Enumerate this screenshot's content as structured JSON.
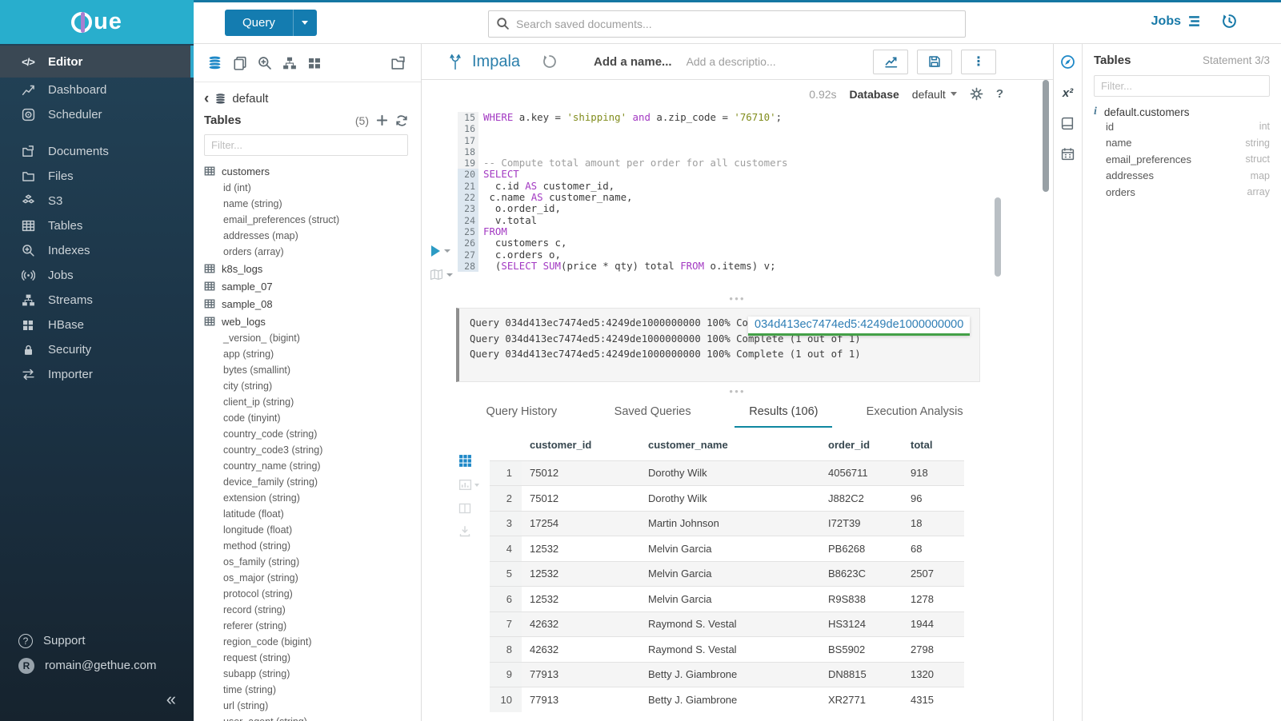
{
  "colors": {
    "brand_cyan": "#28aecd",
    "primary_blue": "#147cb0",
    "link_blue": "#2b7fab",
    "tab_active_underline": "#0e87a0",
    "keyword": "#a238c2",
    "string": "#808c1c",
    "comment": "#9e9e9e",
    "tooltip_green": "#43a047",
    "tooltip_blue": "#2e7eb5"
  },
  "topbar": {
    "query_label": "Query",
    "search_placeholder": "Search saved documents...",
    "jobs_label": "Jobs"
  },
  "sidebar": {
    "logo_text": "ue",
    "items": [
      {
        "id": "editor",
        "icon": "code",
        "label": "Editor",
        "active": true
      },
      {
        "id": "dashboard",
        "icon": "dashboard",
        "label": "Dashboard"
      },
      {
        "id": "scheduler",
        "icon": "scheduler",
        "label": "Scheduler"
      },
      {
        "id": "documents",
        "icon": "documents",
        "label": "Documents",
        "gap": true
      },
      {
        "id": "files",
        "icon": "files",
        "label": "Files"
      },
      {
        "id": "s3",
        "icon": "s3",
        "label": "S3"
      },
      {
        "id": "tables",
        "icon": "tables",
        "label": "Tables"
      },
      {
        "id": "indexes",
        "icon": "indexes",
        "label": "Indexes"
      },
      {
        "id": "jobs",
        "icon": "jobs",
        "label": "Jobs"
      },
      {
        "id": "streams",
        "icon": "streams",
        "label": "Streams"
      },
      {
        "id": "hbase",
        "icon": "hbase",
        "label": "HBase"
      },
      {
        "id": "security",
        "icon": "security",
        "label": "Security"
      },
      {
        "id": "importer",
        "icon": "importer",
        "label": "Importer"
      }
    ],
    "support_label": "Support",
    "user_email": "romain@gethue.com",
    "avatar_letter": "R",
    "collapse_glyph": "«"
  },
  "left_panel": {
    "breadcrumb_back": "‹",
    "database": "default",
    "tables_label": "Tables",
    "count": "(5)",
    "filter_placeholder": "Filter...",
    "tables": [
      {
        "name": "customers",
        "cols": [
          "id (int)",
          "name (string)",
          "email_preferences (struct)",
          "addresses (map)",
          "orders (array)"
        ]
      },
      {
        "name": "k8s_logs",
        "cols": []
      },
      {
        "name": "sample_07",
        "cols": []
      },
      {
        "name": "sample_08",
        "cols": []
      },
      {
        "name": "web_logs",
        "cols": [
          "_version_ (bigint)",
          "app (string)",
          "bytes (smallint)",
          "city (string)",
          "client_ip (string)",
          "code (tinyint)",
          "country_code (string)",
          "country_code3 (string)",
          "country_name (string)",
          "device_family (string)",
          "extension (string)",
          "latitude (float)",
          "longitude (float)",
          "method (string)",
          "os_family (string)",
          "os_major (string)",
          "protocol (string)",
          "record (string)",
          "referer (string)",
          "region_code (bigint)",
          "request (string)",
          "subapp (string)",
          "time (string)",
          "url (string)",
          "user_agent (string)"
        ]
      }
    ]
  },
  "editor": {
    "engine": "Impala",
    "name_placeholder": "Add a name...",
    "description_placeholder": "Add a descriptio...",
    "duration": "0.92s",
    "database_label": "Database",
    "database_value": "default",
    "code_lines": [
      {
        "n": 15,
        "hl": false,
        "toks": [
          {
            "c": "k",
            "t": "WHERE"
          },
          {
            "c": "x",
            "t": " a.key = "
          },
          {
            "c": "s",
            "t": "'shipping'"
          },
          {
            "c": "x",
            "t": " "
          },
          {
            "c": "k",
            "t": "and"
          },
          {
            "c": "x",
            "t": " a.zip_code = "
          },
          {
            "c": "s",
            "t": "'76710'"
          },
          {
            "c": "x",
            "t": ";"
          }
        ]
      },
      {
        "n": 16,
        "hl": false,
        "toks": []
      },
      {
        "n": 17,
        "hl": false,
        "toks": []
      },
      {
        "n": 18,
        "hl": false,
        "toks": []
      },
      {
        "n": 19,
        "hl": false,
        "toks": [
          {
            "c": "m",
            "t": "-- Compute total amount per order for all customers"
          }
        ]
      },
      {
        "n": 20,
        "hl": true,
        "toks": [
          {
            "c": "k",
            "t": "SELECT"
          }
        ]
      },
      {
        "n": 21,
        "hl": true,
        "toks": [
          {
            "c": "x",
            "t": "  c.id "
          },
          {
            "c": "k",
            "t": "AS"
          },
          {
            "c": "x",
            "t": " customer_id,"
          }
        ]
      },
      {
        "n": 22,
        "hl": true,
        "toks": [
          {
            "c": "x",
            "t": " c.name "
          },
          {
            "c": "k",
            "t": "AS"
          },
          {
            "c": "x",
            "t": " customer_name,"
          }
        ]
      },
      {
        "n": 23,
        "hl": true,
        "toks": [
          {
            "c": "x",
            "t": "  o.order_id,"
          }
        ]
      },
      {
        "n": 24,
        "hl": true,
        "toks": [
          {
            "c": "x",
            "t": "  v.total"
          }
        ]
      },
      {
        "n": 25,
        "hl": true,
        "toks": [
          {
            "c": "k",
            "t": "FROM"
          }
        ]
      },
      {
        "n": 26,
        "hl": true,
        "toks": [
          {
            "c": "x",
            "t": "  customers c,"
          }
        ]
      },
      {
        "n": 27,
        "hl": true,
        "toks": [
          {
            "c": "x",
            "t": "  c.orders o,"
          }
        ]
      },
      {
        "n": 28,
        "hl": true,
        "toks": [
          {
            "c": "x",
            "t": "  ("
          },
          {
            "c": "k",
            "t": "SELECT"
          },
          {
            "c": "x",
            "t": " "
          },
          {
            "c": "k",
            "t": "SUM"
          },
          {
            "c": "x",
            "t": "(price * qty) total "
          },
          {
            "c": "k",
            "t": "FROM"
          },
          {
            "c": "x",
            "t": " o.items) v;"
          }
        ]
      }
    ]
  },
  "log": {
    "lines": [
      "Query 034d413ec7474ed5:4249de1000000000 100% Complete (1 out of 1)",
      "Query 034d413ec7474ed5:4249de1000000000 100% Complete (1 out of 1)",
      "Query 034d413ec7474ed5:4249de1000000000 100% Complete (1 out of 1)"
    ],
    "tooltip": "034d413ec7474ed5:4249de1000000000"
  },
  "tabs": [
    {
      "label": "Query History",
      "active": false
    },
    {
      "label": "Saved Queries",
      "active": false
    },
    {
      "label": "Results (106)",
      "active": true
    },
    {
      "label": "Execution Analysis",
      "active": false
    }
  ],
  "results": {
    "columns": [
      "customer_id",
      "customer_name",
      "order_id",
      "total"
    ],
    "rows": [
      [
        "1",
        "75012",
        "Dorothy Wilk",
        "4056711",
        "918"
      ],
      [
        "2",
        "75012",
        "Dorothy Wilk",
        "J882C2",
        "96"
      ],
      [
        "3",
        "17254",
        "Martin Johnson",
        "I72T39",
        "18"
      ],
      [
        "4",
        "12532",
        "Melvin Garcia",
        "PB6268",
        "68"
      ],
      [
        "5",
        "12532",
        "Melvin Garcia",
        "B8623C",
        "2507"
      ],
      [
        "6",
        "12532",
        "Melvin Garcia",
        "R9S838",
        "1278"
      ],
      [
        "7",
        "42632",
        "Raymond S. Vestal",
        "HS3124",
        "1944"
      ],
      [
        "8",
        "42632",
        "Raymond S. Vestal",
        "BS5902",
        "2798"
      ],
      [
        "9",
        "77913",
        "Betty J. Giambrone",
        "DN8815",
        "1320"
      ],
      [
        "10",
        "77913",
        "Betty J. Giambrone",
        "XR2771",
        "4315"
      ]
    ]
  },
  "right_panel": {
    "title": "Tables",
    "statement": "Statement 3/3",
    "filter_placeholder": "Filter...",
    "table_name": "default.customers",
    "columns": [
      {
        "name": "id",
        "type": "int"
      },
      {
        "name": "name",
        "type": "string"
      },
      {
        "name": "email_preferences",
        "type": "struct"
      },
      {
        "name": "addresses",
        "type": "map"
      },
      {
        "name": "orders",
        "type": "array"
      }
    ]
  }
}
